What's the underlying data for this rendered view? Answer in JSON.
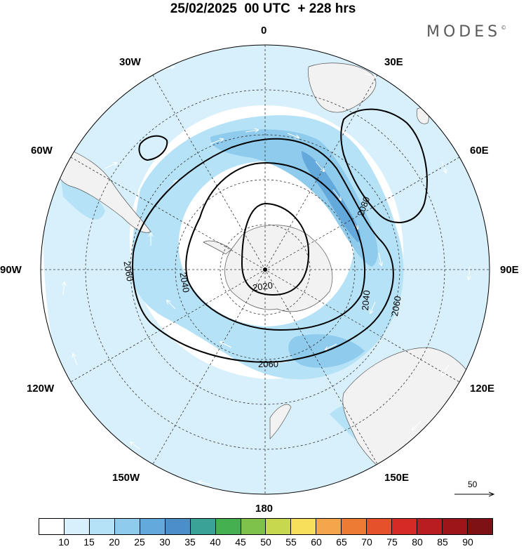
{
  "title": "25/02/2025  00 UTC  + 228 hrs",
  "brand": "MODES",
  "brand_mark": "©",
  "longitude_labels": [
    "0",
    "30E",
    "60E",
    "90E",
    "120E",
    "150E",
    "180",
    "150W",
    "120W",
    "90W",
    "60W",
    "30W"
  ],
  "contour_labels": [
    "2020",
    "2040",
    "2040",
    "2060",
    "2060",
    "2060",
    "2080"
  ],
  "vector_reference": "50",
  "colorbar": {
    "colors": [
      "#ffffff",
      "#d7f0fb",
      "#b5e2f6",
      "#8ecbec",
      "#64a9db",
      "#4b8ec8",
      "#3aa296",
      "#45b04f",
      "#7fc24b",
      "#c7d84f",
      "#f7df5b",
      "#f5a54a",
      "#ee7b34",
      "#e5512a",
      "#d42b25",
      "#b91d22",
      "#9c1519",
      "#7e1114"
    ],
    "labels": [
      "10",
      "15",
      "20",
      "25",
      "30",
      "35",
      "40",
      "45",
      "50",
      "55",
      "60",
      "65",
      "70",
      "75",
      "80",
      "85",
      "90"
    ]
  },
  "colors": {
    "land": "#f2f2f2",
    "ocean": "#ffffff",
    "contour": "#000000"
  }
}
